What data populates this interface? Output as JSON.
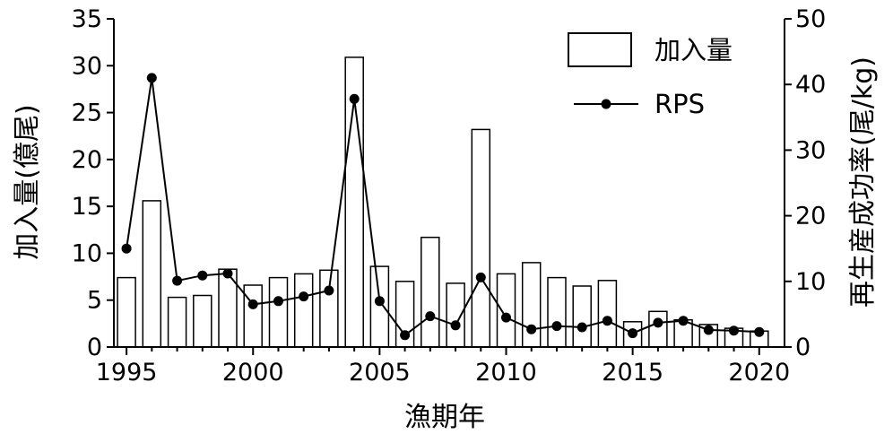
{
  "chart_data": {
    "type": "bar+line",
    "title": "",
    "xlabel": "漁期年",
    "ylabel_left": "加入量(億尾)",
    "ylabel_right": "再生産成功率(尾/kg)",
    "x": [
      1995,
      1996,
      1997,
      1998,
      1999,
      2000,
      2001,
      2002,
      2003,
      2004,
      2005,
      2006,
      2007,
      2008,
      2009,
      2010,
      2011,
      2012,
      2013,
      2014,
      2015,
      2016,
      2017,
      2018,
      2019,
      2020
    ],
    "x_ticks": [
      "1995",
      "2000",
      "2005",
      "2010",
      "2015",
      "2020"
    ],
    "y_left_ticks": [
      "0",
      "5",
      "10",
      "15",
      "20",
      "25",
      "30",
      "35"
    ],
    "y_right_ticks": [
      "0",
      "10",
      "20",
      "30",
      "40",
      "50"
    ],
    "ylim_left": [
      0,
      35
    ],
    "ylim_right": [
      0,
      50
    ],
    "series": [
      {
        "name": "加入量",
        "type": "bar",
        "axis": "left",
        "values": [
          7.4,
          15.6,
          5.3,
          5.5,
          8.3,
          6.6,
          7.4,
          7.8,
          8.2,
          30.9,
          8.6,
          7.0,
          11.7,
          6.8,
          23.2,
          7.8,
          9.0,
          7.4,
          6.5,
          7.1,
          2.7,
          3.8,
          2.9,
          2.4,
          2.0,
          1.7
        ]
      },
      {
        "name": "RPS",
        "type": "line",
        "axis": "right",
        "values": [
          15.0,
          41.0,
          10.1,
          10.9,
          11.2,
          6.5,
          7.0,
          7.7,
          8.6,
          37.8,
          7.0,
          1.8,
          4.7,
          3.3,
          10.6,
          4.5,
          2.7,
          3.2,
          3.0,
          4.0,
          2.1,
          3.7,
          4.0,
          2.6,
          2.5,
          2.3
        ]
      }
    ],
    "legend_position": "top-right",
    "grid": false
  },
  "colors": {
    "bar_fill": "#ffffff",
    "bar_stroke": "#000000",
    "line": "#000000",
    "marker": "#000000"
  }
}
